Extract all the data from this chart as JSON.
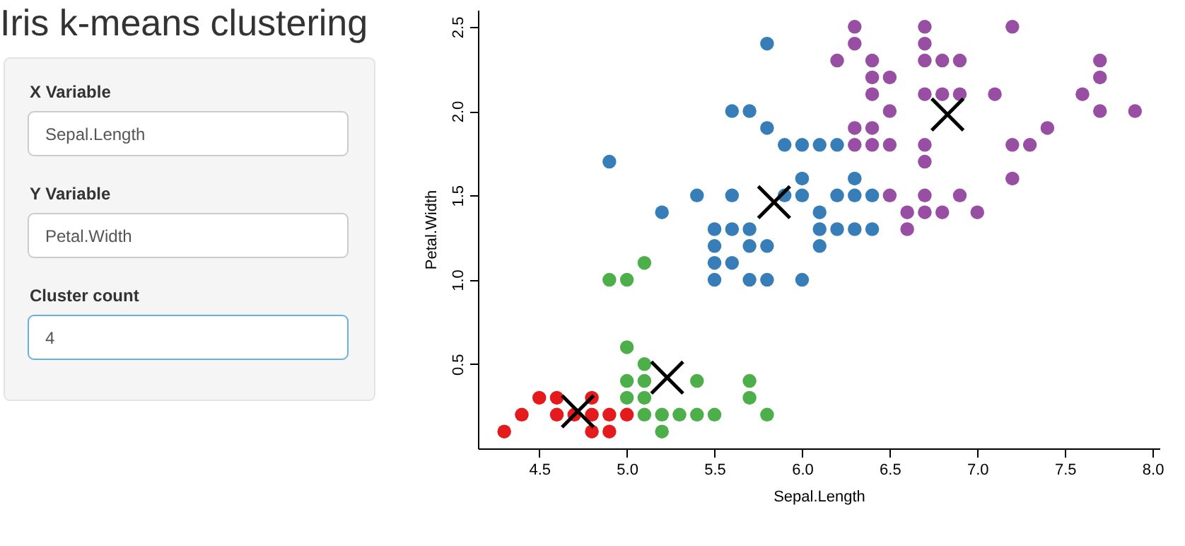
{
  "chart_data": [
    {
      "type": "other",
      "title": "Iris k-means clustering",
      "annotations": [
        "X Variable",
        "Sepal.Length",
        "Y Variable",
        "Petal.Width",
        "Cluster count",
        "4"
      ]
    },
    {
      "type": "scatter",
      "xlabel": "Sepal.Length",
      "ylabel": "Petal.Width",
      "xlim": [
        4.15,
        8.04
      ],
      "ylim": [
        0.0,
        2.6
      ],
      "xticks": [
        {
          "value": 4.5,
          "label": "4.5"
        },
        {
          "value": 5.0,
          "label": "5.0"
        },
        {
          "value": 5.5,
          "label": "5.5"
        },
        {
          "value": 6.0,
          "label": "6.0"
        },
        {
          "value": 6.5,
          "label": "6.5"
        },
        {
          "value": 7.0,
          "label": "7.0"
        },
        {
          "value": 7.5,
          "label": "7.5"
        },
        {
          "value": 8.0,
          "label": "8.0"
        }
      ],
      "yticks": [
        {
          "value": 0.5,
          "label": "0.5"
        },
        {
          "value": 1.0,
          "label": "1.0"
        },
        {
          "value": 1.5,
          "label": "1.5"
        },
        {
          "value": 2.0,
          "label": "2.0"
        },
        {
          "value": 2.5,
          "label": "2.5"
        }
      ],
      "grid": false,
      "marker": "circle",
      "series": [
        {
          "color": "#e41a1c",
          "x": [
            4.3,
            4.4,
            4.5,
            4.6,
            4.6,
            4.7,
            4.8,
            4.8,
            4.8,
            4.9,
            4.9,
            5.0
          ],
          "values": [
            0.1,
            0.2,
            0.3,
            0.3,
            0.2,
            0.2,
            0.3,
            0.2,
            0.1,
            0.2,
            0.1,
            0.2
          ]
        },
        {
          "color": "#4daf4a",
          "x": [
            5.0,
            5.1,
            5.0,
            5.1,
            5.0,
            5.1,
            5.1,
            5.2,
            5.3,
            5.4,
            5.5,
            5.2,
            5.4,
            5.7,
            5.7,
            5.8,
            4.9,
            5.0,
            5.1
          ],
          "values": [
            0.6,
            0.5,
            0.4,
            0.4,
            0.3,
            0.3,
            0.2,
            0.2,
            0.2,
            0.2,
            0.2,
            0.1,
            0.4,
            0.4,
            0.3,
            0.2,
            1.0,
            1.0,
            1.1
          ]
        },
        {
          "color": "#377eb8",
          "x": [
            4.9,
            5.8,
            5.6,
            5.7,
            5.8,
            5.9,
            6.0,
            6.1,
            6.2,
            6.0,
            6.3,
            5.4,
            5.6,
            5.9,
            6.0,
            6.2,
            6.3,
            6.4,
            5.2,
            6.1,
            5.5,
            5.6,
            5.7,
            6.1,
            6.2,
            6.3,
            6.4,
            5.5,
            5.7,
            5.8,
            6.1,
            5.5,
            5.6,
            5.5,
            5.7,
            5.8,
            6.0
          ],
          "values": [
            1.7,
            2.4,
            2.0,
            2.0,
            1.9,
            1.8,
            1.8,
            1.8,
            1.8,
            1.6,
            1.6,
            1.5,
            1.5,
            1.5,
            1.5,
            1.5,
            1.5,
            1.5,
            1.4,
            1.4,
            1.3,
            1.3,
            1.3,
            1.3,
            1.3,
            1.3,
            1.3,
            1.2,
            1.2,
            1.2,
            1.2,
            1.1,
            1.1,
            1.0,
            1.0,
            1.0,
            1.0
          ]
        },
        {
          "color": "#984ea3",
          "x": [
            6.3,
            6.7,
            7.2,
            6.3,
            6.7,
            6.2,
            6.4,
            6.7,
            6.8,
            6.9,
            7.7,
            6.4,
            6.5,
            7.7,
            6.4,
            6.7,
            6.8,
            6.9,
            7.1,
            7.6,
            6.5,
            7.7,
            7.9,
            6.3,
            6.4,
            7.4,
            6.3,
            6.4,
            6.5,
            6.7,
            7.2,
            7.3,
            6.7,
            7.2,
            6.5,
            6.7,
            6.9,
            6.6,
            6.7,
            6.8,
            7.0,
            6.6
          ],
          "values": [
            2.5,
            2.5,
            2.5,
            2.4,
            2.4,
            2.3,
            2.3,
            2.3,
            2.3,
            2.3,
            2.3,
            2.2,
            2.2,
            2.2,
            2.1,
            2.1,
            2.1,
            2.1,
            2.1,
            2.1,
            2.0,
            2.0,
            2.0,
            1.9,
            1.9,
            1.9,
            1.8,
            1.8,
            1.8,
            1.8,
            1.8,
            1.8,
            1.7,
            1.6,
            1.5,
            1.5,
            1.5,
            1.4,
            1.4,
            1.4,
            1.4,
            1.3
          ]
        },
        {
          "color": "#000000",
          "marker": "cross",
          "x": [
            4.72,
            5.23,
            5.84,
            6.83
          ],
          "values": [
            0.22,
            0.42,
            1.46,
            1.98
          ]
        }
      ]
    }
  ]
}
